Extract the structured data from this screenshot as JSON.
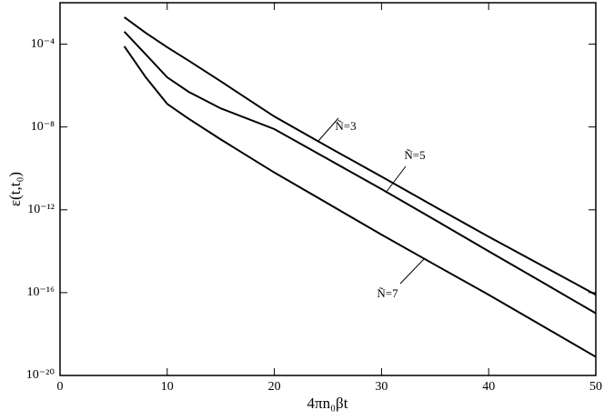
{
  "chart_data": {
    "type": "line",
    "x_label": "4πn₀βt",
    "y_label": "ε(t,t₀)",
    "x": [
      6,
      8,
      10,
      12,
      15,
      20,
      25,
      30,
      35,
      40,
      45,
      50
    ],
    "series": [
      {
        "name": "Ñ=3",
        "color": "#000000",
        "values": [
          0.002,
          0.00035,
          7.1e-05,
          1.6e-05,
          1.6e-06,
          3.2e-08,
          1.1e-09,
          4e-11,
          1.4e-12,
          5e-14,
          2e-15,
          7.9e-17
        ]
      },
      {
        "name": "Ñ=5",
        "color": "#000000",
        "values": [
          0.0004,
          3.2e-05,
          2.5e-06,
          5e-07,
          7.9e-08,
          7.9e-09,
          2.8e-10,
          1e-11,
          3.2e-13,
          1e-14,
          3.2e-16,
          1e-17
        ]
      },
      {
        "name": "Ñ=7",
        "color": "#000000",
        "values": [
          7.9e-05,
          2.5e-06,
          1.3e-07,
          2.5e-08,
          2.5e-09,
          6.3e-11,
          2e-12,
          6.3e-14,
          2.2e-15,
          7.9e-17,
          2.5e-18,
          7.9e-20
        ]
      }
    ],
    "xlim": [
      0,
      50
    ],
    "xticks": [
      0,
      10,
      20,
      30,
      40,
      50
    ],
    "ylim": [
      1e-20,
      0.01
    ],
    "ylog": true,
    "yticks": [
      {
        "value": 0.0001,
        "label": "10⁻⁴"
      },
      {
        "value": 1e-08,
        "label": "10⁻⁸"
      },
      {
        "value": 1e-12,
        "label": "10⁻¹²"
      },
      {
        "value": 1e-16,
        "label": "10⁻¹⁶"
      },
      {
        "value": 1e-20,
        "label": "10⁻²⁰"
      }
    ]
  }
}
